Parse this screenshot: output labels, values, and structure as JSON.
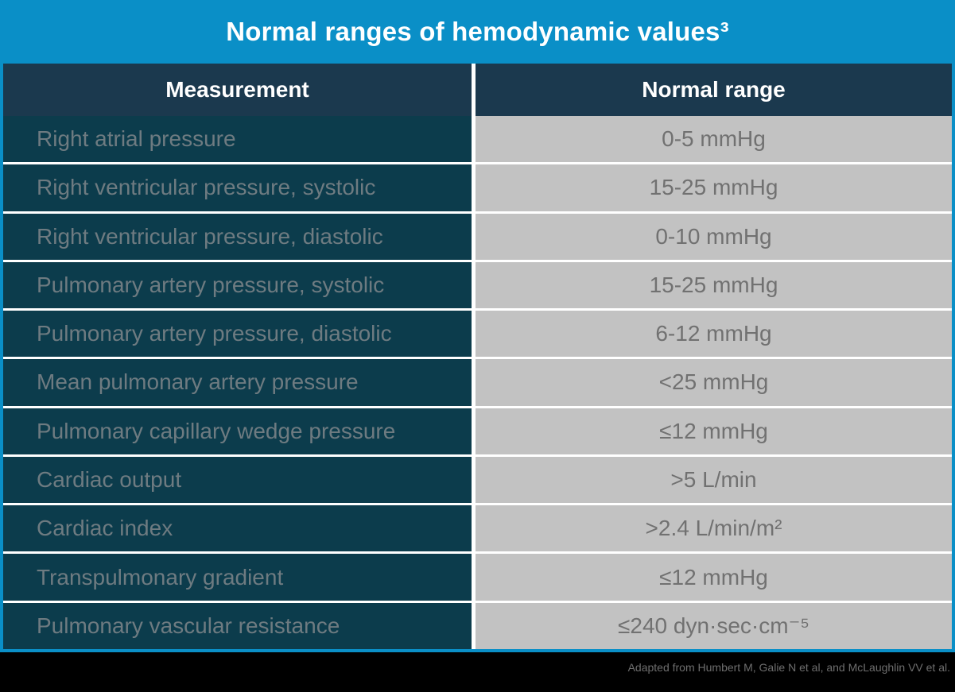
{
  "title": "Normal ranges of hemodynamic values³",
  "table": {
    "columns": [
      "Measurement",
      "Normal range"
    ],
    "rows": [
      {
        "measurement": "Right atrial pressure",
        "normal_range": "0-5 mmHg"
      },
      {
        "measurement": "Right ventricular pressure, systolic",
        "normal_range": "15-25 mmHg"
      },
      {
        "measurement": "Right ventricular pressure, diastolic",
        "normal_range": "0-10 mmHg"
      },
      {
        "measurement": "Pulmonary artery pressure, systolic",
        "normal_range": "15-25 mmHg"
      },
      {
        "measurement": "Pulmonary artery pressure, diastolic",
        "normal_range": "6-12 mmHg"
      },
      {
        "measurement": "Mean pulmonary artery pressure",
        "normal_range": "<25 mmHg"
      },
      {
        "measurement": "Pulmonary capillary wedge pressure",
        "normal_range": "≤12 mmHg"
      },
      {
        "measurement": "Cardiac output",
        "normal_range": ">5 L/min"
      },
      {
        "measurement": "Cardiac index",
        "normal_range": ">2.4 L/min/m²"
      },
      {
        "measurement": "Transpulmonary gradient",
        "normal_range": "≤12 mmHg"
      },
      {
        "measurement": "Pulmonary vascular resistance",
        "normal_range": "≤240 dyn·sec·cm⁻⁵"
      }
    ]
  },
  "footer": {
    "citation": "Adapted from Humbert M, Galie N et al, and McLaughlin VV et al."
  },
  "colors": {
    "brand_blue": "#0a8fc7",
    "header_navy": "#1b394e",
    "row_teal": "#0c3c4c",
    "value_cell_gray": "#c2c2c2",
    "measurement_text": "#6e7b81",
    "value_text": "#717171",
    "separator_white": "#ffffff",
    "footer_black": "#000000",
    "footer_text": "#6e6e6e"
  }
}
